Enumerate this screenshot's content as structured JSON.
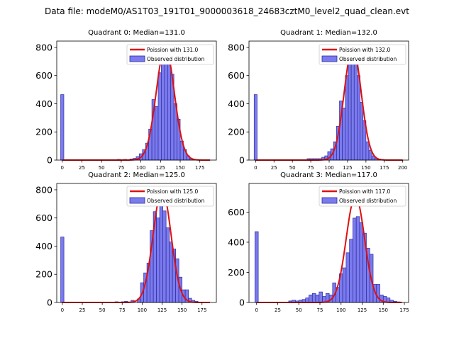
{
  "suptitle": "Data file: modeM0/AS1T03_191T01_9000003618_24683cztM0_level2_quad_clean.evt",
  "colors": {
    "bar_fill": "#7b7bef",
    "bar_edge": "#2c2c9a",
    "poisson_line": "#e01010",
    "axis": "#000000"
  },
  "chart_data": [
    {
      "type": "bar",
      "title": "Quadrant 0: Median=131.0",
      "median": 131.0,
      "xlim": [
        -7,
        196
      ],
      "ylim": [
        0,
        845
      ],
      "xticks": [
        0,
        25,
        50,
        75,
        100,
        125,
        150,
        175
      ],
      "yticks": [
        0,
        200,
        400,
        600,
        800
      ],
      "bin_width": 4,
      "bins": [
        [
          0,
          465
        ],
        [
          72,
          5
        ],
        [
          80,
          5
        ],
        [
          88,
          8
        ],
        [
          92,
          12
        ],
        [
          96,
          25
        ],
        [
          100,
          45
        ],
        [
          104,
          75
        ],
        [
          108,
          120
        ],
        [
          112,
          220
        ],
        [
          116,
          430
        ],
        [
          120,
          380
        ],
        [
          124,
          620
        ],
        [
          128,
          740
        ],
        [
          132,
          800
        ],
        [
          136,
          740
        ],
        [
          140,
          610
        ],
        [
          144,
          400
        ],
        [
          148,
          290
        ],
        [
          152,
          135
        ],
        [
          156,
          75
        ],
        [
          160,
          30
        ],
        [
          164,
          10
        ],
        [
          168,
          5
        ]
      ],
      "poisson": {
        "lambda": 131.0,
        "peak": 800
      },
      "legend": [
        "Poission with 131.0",
        "Observed distribution"
      ]
    },
    {
      "type": "bar",
      "title": "Quadrant 1: Median=132.0",
      "median": 132.0,
      "xlim": [
        -9,
        208
      ],
      "ylim": [
        0,
        845
      ],
      "xticks": [
        0,
        25,
        50,
        75,
        100,
        125,
        150,
        175,
        200
      ],
      "yticks": [
        0,
        200,
        400,
        600,
        800
      ],
      "bin_width": 4,
      "bins": [
        [
          0,
          465
        ],
        [
          72,
          10
        ],
        [
          76,
          10
        ],
        [
          80,
          10
        ],
        [
          84,
          10
        ],
        [
          88,
          10
        ],
        [
          92,
          20
        ],
        [
          96,
          30
        ],
        [
          100,
          60
        ],
        [
          104,
          80
        ],
        [
          108,
          130
        ],
        [
          112,
          240
        ],
        [
          116,
          420
        ],
        [
          120,
          370
        ],
        [
          124,
          600
        ],
        [
          128,
          750
        ],
        [
          132,
          790
        ],
        [
          136,
          760
        ],
        [
          140,
          600
        ],
        [
          144,
          410
        ],
        [
          148,
          280
        ],
        [
          152,
          130
        ],
        [
          156,
          70
        ],
        [
          160,
          30
        ],
        [
          164,
          12
        ],
        [
          168,
          8
        ],
        [
          172,
          5
        ]
      ],
      "poisson": {
        "lambda": 132.0,
        "peak": 800
      },
      "legend": [
        "Poission with 132.0",
        "Observed distribution"
      ]
    },
    {
      "type": "bar",
      "title": "Quadrant 2: Median=125.0",
      "median": 125.0,
      "xlim": [
        -7,
        193
      ],
      "ylim": [
        0,
        845
      ],
      "xticks": [
        0,
        25,
        50,
        75,
        100,
        125,
        150,
        175
      ],
      "yticks": [
        0,
        200,
        400,
        600,
        800
      ],
      "bin_width": 4,
      "bins": [
        [
          0,
          465
        ],
        [
          68,
          5
        ],
        [
          76,
          5
        ],
        [
          80,
          8
        ],
        [
          88,
          15
        ],
        [
          96,
          25
        ],
        [
          100,
          140
        ],
        [
          104,
          210
        ],
        [
          108,
          280
        ],
        [
          112,
          510
        ],
        [
          116,
          645
        ],
        [
          120,
          600
        ],
        [
          124,
          760
        ],
        [
          128,
          650
        ],
        [
          132,
          530
        ],
        [
          136,
          430
        ],
        [
          140,
          380
        ],
        [
          144,
          310
        ],
        [
          148,
          180
        ],
        [
          152,
          90
        ],
        [
          156,
          90
        ],
        [
          160,
          30
        ],
        [
          164,
          15
        ],
        [
          168,
          8
        ]
      ],
      "poisson": {
        "lambda": 125.0,
        "peak": 800
      },
      "legend": [
        "Poission with 125.0",
        "Observed distribution"
      ]
    },
    {
      "type": "bar",
      "title": "Quadrant 3: Median=117.0",
      "median": 117.0,
      "xlim": [
        -9,
        180
      ],
      "ylim": [
        0,
        790
      ],
      "xticks": [
        0,
        25,
        50,
        75,
        100,
        125,
        150,
        175
      ],
      "yticks": [
        0,
        200,
        400,
        600
      ],
      "bin_width": 4,
      "bins": [
        [
          0,
          470
        ],
        [
          40,
          10
        ],
        [
          44,
          15
        ],
        [
          48,
          10
        ],
        [
          52,
          15
        ],
        [
          56,
          20
        ],
        [
          60,
          30
        ],
        [
          64,
          50
        ],
        [
          68,
          60
        ],
        [
          72,
          50
        ],
        [
          76,
          70
        ],
        [
          80,
          40
        ],
        [
          84,
          60
        ],
        [
          88,
          50
        ],
        [
          92,
          130
        ],
        [
          96,
          100
        ],
        [
          100,
          190
        ],
        [
          104,
          230
        ],
        [
          108,
          330
        ],
        [
          112,
          420
        ],
        [
          116,
          560
        ],
        [
          120,
          570
        ],
        [
          124,
          530
        ],
        [
          128,
          460
        ],
        [
          132,
          360
        ],
        [
          136,
          320
        ],
        [
          140,
          120
        ],
        [
          144,
          120
        ],
        [
          148,
          50
        ],
        [
          152,
          40
        ],
        [
          156,
          30
        ],
        [
          160,
          15
        ],
        [
          164,
          8
        ],
        [
          168,
          4
        ]
      ],
      "poisson": {
        "lambda": 117.0,
        "peak": 705
      },
      "legend": [
        "Poission with 117.0",
        "Observed distribution"
      ]
    }
  ]
}
